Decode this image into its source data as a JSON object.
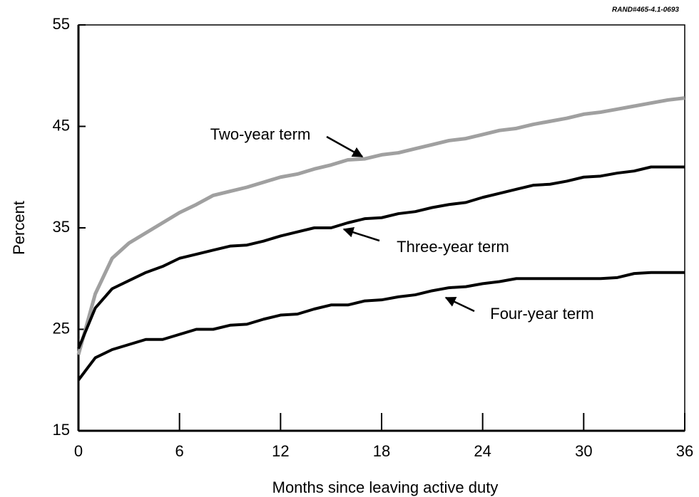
{
  "chart_data": {
    "type": "line",
    "corner_note": "RAND#465-4.1-0693",
    "xlabel": "Months since leaving active duty",
    "ylabel": "Percent",
    "x": [
      0,
      1,
      2,
      3,
      4,
      5,
      6,
      7,
      8,
      9,
      10,
      11,
      12,
      13,
      14,
      15,
      16,
      17,
      18,
      19,
      20,
      21,
      22,
      23,
      24,
      25,
      26,
      27,
      28,
      29,
      30,
      31,
      32,
      33,
      34,
      35,
      36
    ],
    "series": [
      {
        "name": "Two-year term",
        "color": "#a0a0a0",
        "values": [
          22.5,
          28.5,
          32,
          33.5,
          34.5,
          35.5,
          36.5,
          37.3,
          38.2,
          38.6,
          39,
          39.5,
          40,
          40.3,
          40.8,
          41.2,
          41.7,
          41.8,
          42.2,
          42.4,
          42.8,
          43.2,
          43.6,
          43.8,
          44.2,
          44.6,
          44.8,
          45.2,
          45.5,
          45.8,
          46.2,
          46.4,
          46.7,
          47,
          47.3,
          47.6,
          47.8
        ]
      },
      {
        "name": "Three-year term",
        "color": "#000000",
        "values": [
          23.1,
          27.1,
          29,
          29.8,
          30.6,
          31.2,
          32,
          32.4,
          32.8,
          33.2,
          33.3,
          33.7,
          34.2,
          34.6,
          35,
          35,
          35.5,
          35.9,
          36,
          36.4,
          36.6,
          37,
          37.3,
          37.5,
          38,
          38.4,
          38.8,
          39.2,
          39.3,
          39.6,
          40,
          40.1,
          40.4,
          40.6,
          41,
          41,
          41
        ]
      },
      {
        "name": "Four-year term",
        "color": "#000000",
        "values": [
          20,
          22.2,
          23,
          23.5,
          24,
          24,
          24.5,
          25,
          25,
          25.4,
          25.5,
          26,
          26.4,
          26.5,
          27,
          27.4,
          27.4,
          27.8,
          27.9,
          28.2,
          28.4,
          28.8,
          29.1,
          29.2,
          29.5,
          29.7,
          30,
          30,
          30,
          30,
          30,
          30,
          30.1,
          30.5,
          30.6,
          30.6,
          30.6
        ]
      }
    ],
    "xlim": [
      0,
      36
    ],
    "xticks": [
      0,
      6,
      12,
      18,
      24,
      30,
      36
    ],
    "ylim": [
      15,
      55
    ],
    "yticks": [
      15,
      25,
      35,
      45,
      55
    ]
  }
}
